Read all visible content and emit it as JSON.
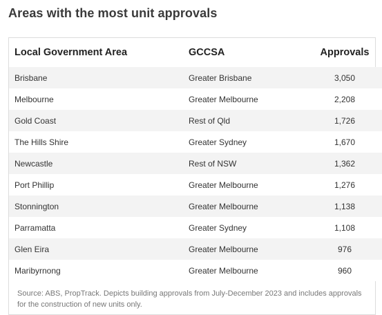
{
  "title": "Areas with the most unit approvals",
  "table": {
    "headers": [
      "Local Government Area",
      "GCCSA",
      "Approvals"
    ],
    "rows": [
      {
        "lga": "Brisbane",
        "gccsa": "Greater Brisbane",
        "approvals": "3,050"
      },
      {
        "lga": "Melbourne",
        "gccsa": "Greater Melbourne",
        "approvals": "2,208"
      },
      {
        "lga": "Gold Coast",
        "gccsa": "Rest of Qld",
        "approvals": "1,726"
      },
      {
        "lga": "The Hills Shire",
        "gccsa": "Greater Sydney",
        "approvals": "1,670"
      },
      {
        "lga": "Newcastle",
        "gccsa": "Rest of NSW",
        "approvals": "1,362"
      },
      {
        "lga": "Port Phillip",
        "gccsa": "Greater Melbourne",
        "approvals": "1,276"
      },
      {
        "lga": "Stonnington",
        "gccsa": "Greater Melbourne",
        "approvals": "1,138"
      },
      {
        "lga": "Parramatta",
        "gccsa": "Greater Sydney",
        "approvals": "1,108"
      },
      {
        "lga": "Glen Eira",
        "gccsa": "Greater Melbourne",
        "approvals": "976"
      },
      {
        "lga": "Maribyrnong",
        "gccsa": "Greater Melbourne",
        "approvals": "960"
      }
    ]
  },
  "source": "Source: ABS, PropTrack. Depicts building approvals from July-December 2023 and includes approvals for the construction of new units only.",
  "colors": {
    "stripe": "#f3f3f3",
    "border": "#dcdcdc",
    "source_text": "#777777"
  }
}
